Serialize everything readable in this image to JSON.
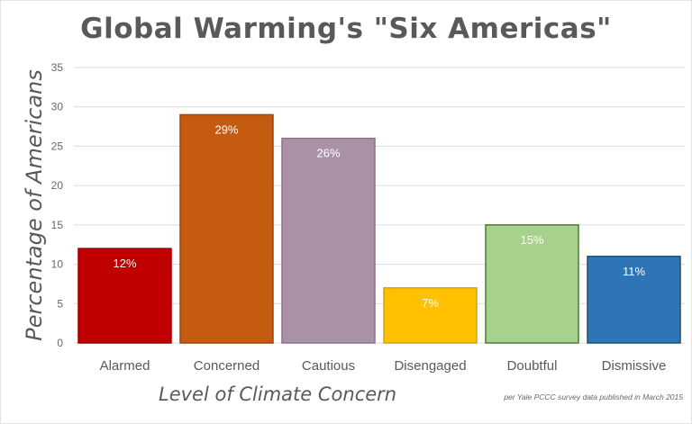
{
  "chart_data": {
    "type": "bar",
    "title": "Global Warming's \"Six Americas\"",
    "xlabel": "Level of Climate Concern",
    "ylabel": "Percentage of Americans",
    "note": "per Yale PCCC survey data published in March 2015",
    "categories": [
      "Alarmed",
      "Concerned",
      "Cautious",
      "Disengaged",
      "Doubtful",
      "Dismissive"
    ],
    "values": [
      12,
      29,
      26,
      7,
      15,
      11
    ],
    "data_labels": [
      "12%",
      "29%",
      "26%",
      "7%",
      "15%",
      "11%"
    ],
    "colors": [
      "#C00000",
      "#C55A11",
      "#AB91A8",
      "#FFC000",
      "#A9D18E",
      "#2E75B6"
    ],
    "border_colors": [
      "#A00000",
      "#9E450B",
      "#8C7289",
      "#D9A300",
      "#4E7A33",
      "#1F4E79"
    ],
    "ylim": [
      0,
      35
    ],
    "yticks": [
      0,
      5,
      10,
      15,
      20,
      25,
      30,
      35
    ],
    "grid": true,
    "legend": "none"
  }
}
